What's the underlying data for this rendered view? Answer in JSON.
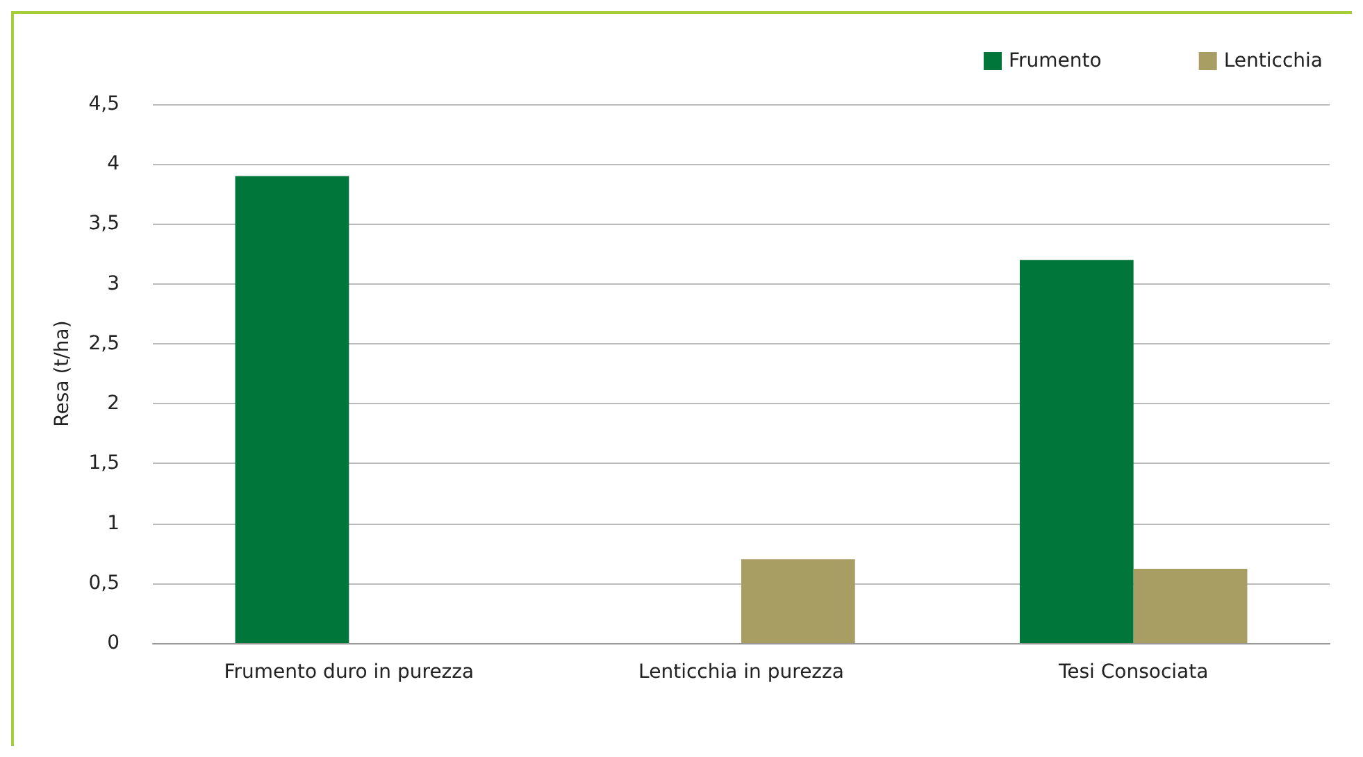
{
  "chart_data": {
    "type": "bar",
    "ylabel": "Resa (t/ha)",
    "categories": [
      "Frumento duro in purezza",
      "Lenticchia in purezza",
      "Tesi Consociata"
    ],
    "series": [
      {
        "name": "Frumento",
        "color": "#00763a",
        "values": [
          3.9,
          null,
          3.2
        ]
      },
      {
        "name": "Lenticchia",
        "color": "#a89d62",
        "values": [
          null,
          0.7,
          0.62
        ]
      }
    ],
    "ylim": [
      0,
      4.5
    ],
    "yticks": [
      0,
      {
        "value": 0.5,
        "label": "0,5"
      },
      1,
      {
        "value": 1.5,
        "label": "1,5"
      },
      2,
      {
        "value": 2.5,
        "label": "2,5"
      },
      3,
      {
        "value": 3.5,
        "label": "3,5"
      },
      4,
      {
        "value": 4.5,
        "label": "4,5"
      }
    ],
    "grid": "y",
    "legend": "top right"
  }
}
